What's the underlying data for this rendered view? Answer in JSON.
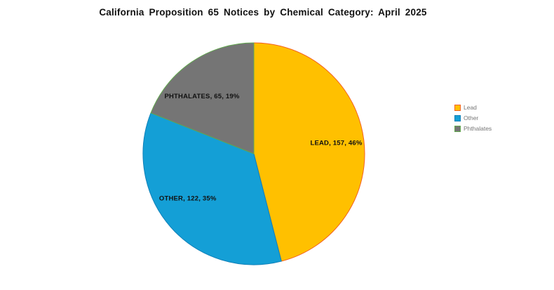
{
  "title": "California Proposition 65 Notices by Chemical Category: April 2025",
  "chart_data": {
    "type": "pie",
    "title": "California Proposition 65 Notices by Chemical Category: April 2025",
    "categories": [
      "Lead",
      "Other",
      "Phthalates"
    ],
    "values": [
      157,
      122,
      65
    ],
    "percentages": [
      46,
      35,
      19
    ],
    "slice_labels": [
      "LEAD, 157, 46%",
      "OTHER, 122, 35%",
      "PHTHALATES, 65, 19%"
    ],
    "colors": [
      "#FFC000",
      "#149FD6",
      "#757575"
    ],
    "edge_colors": [
      "#F4621F",
      "#1080B8",
      "#62A84F"
    ],
    "start_angle_deg": 0,
    "direction": "clockwise",
    "legend_position": "right",
    "background": "#FFFFFF",
    "legend": [
      {
        "label": "Lead",
        "fill": "#FFC000",
        "border": "#F4621F"
      },
      {
        "label": "Other",
        "fill": "#149FD6",
        "border": "#1080B8"
      },
      {
        "label": "Phthalates",
        "fill": "#757575",
        "border": "#62A84F"
      }
    ]
  }
}
